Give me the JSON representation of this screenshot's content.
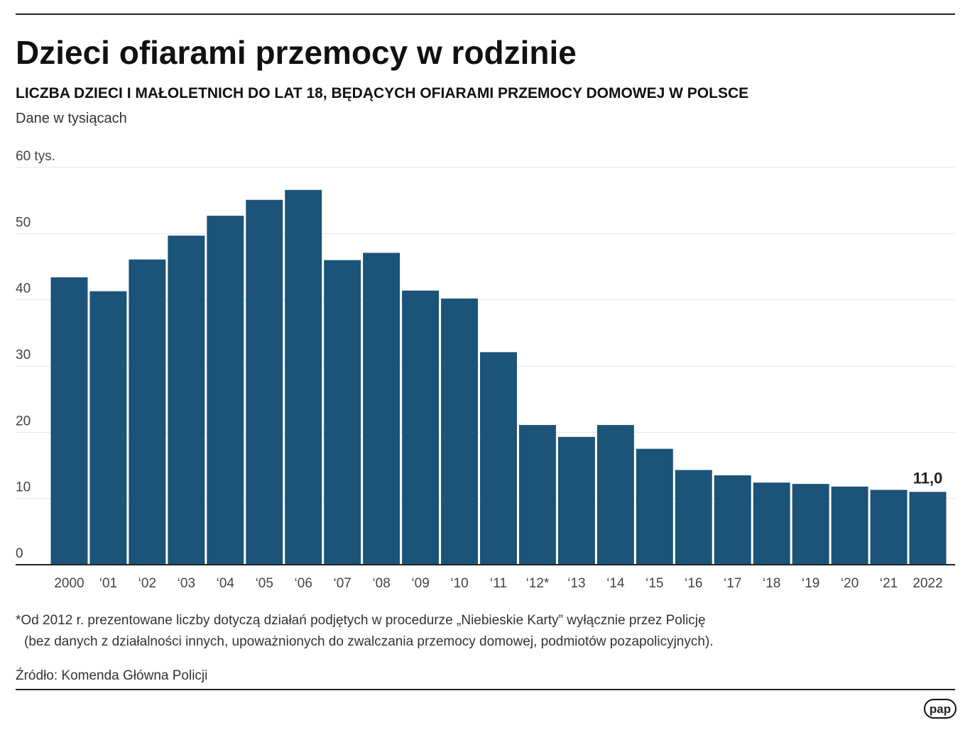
{
  "chart_data": {
    "type": "bar",
    "title": "Dzieci ofiarami przemocy w rodzinie",
    "subtitle": "LICZBA DZIECI I MAŁOLETNICH DO LAT 18, BĘDĄCYCH OFIARAMI PRZEMOCY DOMOWEJ W POLSCE",
    "unit_note": "Dane w tysiącach",
    "categories": [
      "2000",
      "‘01",
      "‘02",
      "‘03",
      "‘04",
      "‘05",
      "‘06",
      "‘07",
      "‘08",
      "‘09",
      "‘10",
      "‘11",
      "‘12*",
      "‘13",
      "‘14",
      "‘15",
      "‘16",
      "‘17",
      "‘18",
      "‘19",
      "‘20",
      "‘21",
      "2022"
    ],
    "values": [
      43.4,
      41.3,
      46.1,
      49.7,
      52.7,
      55.1,
      56.6,
      46.0,
      47.1,
      41.4,
      40.2,
      32.1,
      21.1,
      19.3,
      21.1,
      17.5,
      14.3,
      13.5,
      12.4,
      12.2,
      11.8,
      11.3,
      11.0
    ],
    "value_labels": [
      null,
      null,
      null,
      null,
      null,
      null,
      null,
      null,
      null,
      null,
      null,
      null,
      null,
      null,
      null,
      null,
      null,
      null,
      null,
      null,
      null,
      null,
      "11,0"
    ],
    "color": "#1c5378",
    "ylim": [
      0,
      60
    ],
    "yticks": [
      0,
      10,
      20,
      30,
      40,
      50,
      {
        "value": 60,
        "label": "60 tys."
      }
    ],
    "grid": true,
    "footnote": [
      "*Od 2012 r. prezentowane liczby dotyczą działań podjętych w procedurze „Niebieskie Karty” wyłącznie przez Policję",
      "(bez danych z działalności innych, upoważnionych do zwalczania przemocy domowej, podmiotów pozapolicyjnych)."
    ],
    "source": "Źródło: Komenda Główna Policji",
    "logo": "pap"
  }
}
